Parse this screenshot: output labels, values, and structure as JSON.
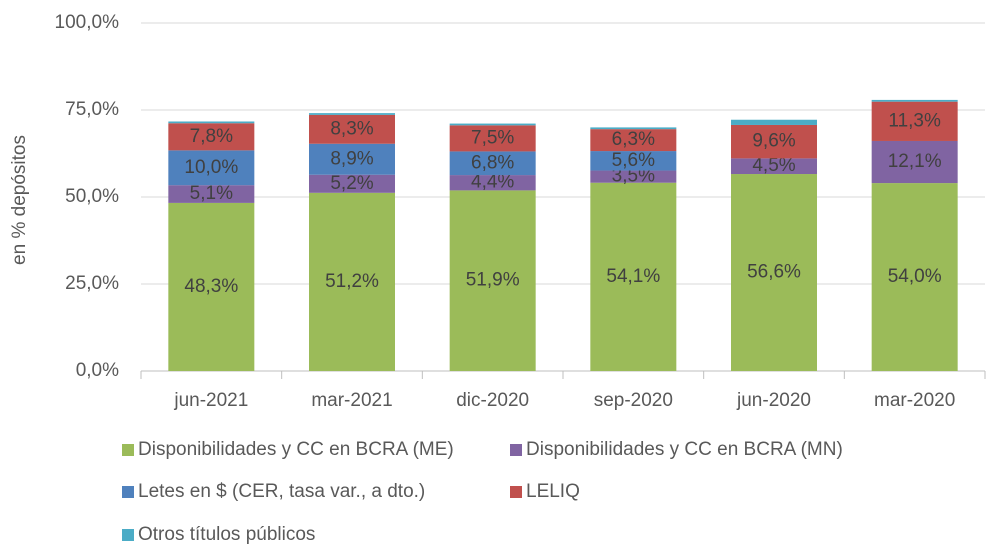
{
  "chart_data": {
    "type": "stacked_bar",
    "y_label": "en % depósitos",
    "categories": [
      "jun-2021",
      "mar-2021",
      "dic-2020",
      "sep-2020",
      "jun-2020",
      "mar-2020"
    ],
    "series": [
      {
        "name": "Disponibilidades y CC en BCRA (ME)",
        "color": "#9bbb59",
        "values": [
          48.3,
          51.2,
          51.9,
          54.1,
          56.6,
          54.0
        ],
        "value_labels": [
          "48,3%",
          "51,2%",
          "51,9%",
          "54,1%",
          "56,6%",
          "54,0%"
        ]
      },
      {
        "name": "Disponibilidades y CC en BCRA (MN)",
        "color": "#8064a2",
        "values": [
          5.1,
          5.2,
          4.4,
          3.5,
          4.5,
          12.1
        ],
        "value_labels": [
          "5,1%",
          "5,2%",
          "4,4%",
          "3,5%",
          "4,5%",
          "12,1%"
        ]
      },
      {
        "name": "Letes en $ (CER, tasa var., a dto.)",
        "color": "#4f81bd",
        "values": [
          10.0,
          8.9,
          6.8,
          5.6,
          0,
          0
        ],
        "value_labels": [
          "10,0%",
          "8,9%",
          "6,8%",
          "5,6%",
          null,
          null
        ]
      },
      {
        "name": "LELIQ",
        "color": "#c0504d",
        "values": [
          7.8,
          8.3,
          7.5,
          6.3,
          9.6,
          11.3
        ],
        "value_labels": [
          "7,8%",
          "8,3%",
          "7,5%",
          "6,3%",
          "9,6%",
          "11,3%"
        ]
      },
      {
        "name": "Otros títulos públicos",
        "color": "#4bacc6",
        "values": [
          0.5,
          0.5,
          0.5,
          0.5,
          1.5,
          0.5
        ]
      }
    ],
    "ylim": [
      0,
      100
    ],
    "yticks": [
      {
        "value": 0,
        "label": "0,0%"
      },
      {
        "value": 25,
        "label": "25,0%"
      },
      {
        "value": 50,
        "label": "50,0%"
      },
      {
        "value": 75,
        "label": "75,0%"
      },
      {
        "value": 100,
        "label": "100,0%"
      }
    ],
    "grid": true
  }
}
